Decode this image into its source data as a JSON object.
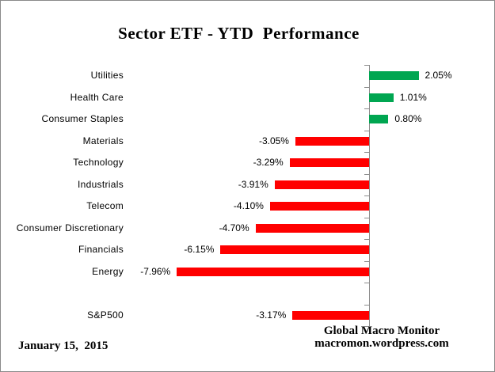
{
  "title": "Sector ETF - YTD  Performance",
  "footer": {
    "date": "January 15,  2015",
    "source_line1": "Global Macro Monitor",
    "source_line2": "macromon.wordpress.com"
  },
  "colors": {
    "positive_bar": "#00A651",
    "negative_bar": "#FF0000",
    "axis": "#8C8C8C",
    "border": "#8A8A8A",
    "background": "#FFFFFF",
    "text": "#000000"
  },
  "chart_data": {
    "type": "bar",
    "orientation": "horizontal",
    "title": "Sector ETF - YTD  Performance",
    "categories": [
      "Utilities",
      "Health Care",
      "Consumer Staples",
      "Materials",
      "Technology",
      "Industrials",
      "Telecom",
      "Consumer Discretionary",
      "Financials",
      "Energy",
      "",
      "S&P500"
    ],
    "values": [
      2.05,
      1.01,
      0.8,
      -3.05,
      -3.29,
      -3.91,
      -4.1,
      -4.7,
      -6.15,
      -7.96,
      null,
      -3.17
    ],
    "data_labels": [
      "2.05%",
      "1.01%",
      "0.80%",
      "-3.05%",
      "-3.29%",
      "-3.91%",
      "-4.10%",
      "-4.70%",
      "-6.15%",
      "-7.96%",
      "",
      "-3.17%"
    ],
    "xlabel": "",
    "ylabel": "",
    "xlim": [
      -8.5,
      2.6
    ],
    "gridlines": false,
    "legend": "none",
    "value_axis_tick_labels": "hidden",
    "category_axis": "zero-crossing vertical line with ticks at category boundaries",
    "data_label_position": "outside end",
    "positive_color": "#00A651",
    "negative_color": "#FF0000"
  }
}
